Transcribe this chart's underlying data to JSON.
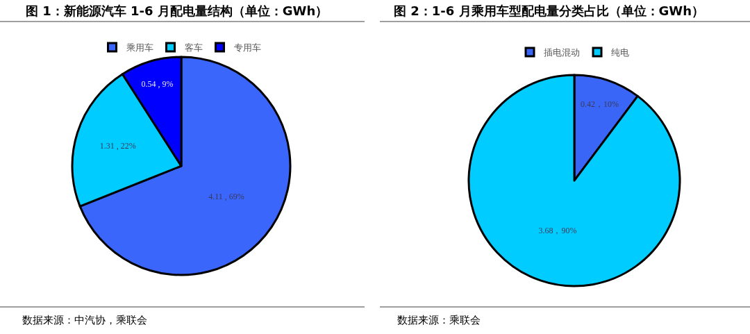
{
  "chart_data": [
    {
      "type": "pie",
      "title": "图 1：新能源汽车 1-6 月配电量结构（单位：GWh）",
      "categories": [
        "乘用车",
        "客车",
        "专用车"
      ],
      "values": [
        4.11,
        1.31,
        0.54
      ],
      "colors": [
        "#3a66fc",
        "#00ccff",
        "#0000ff"
      ],
      "value_labels": [
        "4.11 , 69%",
        "1.31 , 22%",
        "0.54 , 9%"
      ],
      "legend": "top",
      "annotations": [
        "数据来源：中汽协，乘联会"
      ]
    },
    {
      "type": "pie",
      "title": "图 2：1-6 月乘用车型配电量分类占比（单位：GWh）",
      "categories": [
        "插电混动",
        "纯电"
      ],
      "values": [
        0.42,
        3.68
      ],
      "colors": [
        "#3a66f8",
        "#00ccff"
      ],
      "value_labels": [
        "0.42，10%",
        "3.68，90%"
      ],
      "legend": "top",
      "annotations": [
        "数据来源：乘联会"
      ]
    }
  ]
}
